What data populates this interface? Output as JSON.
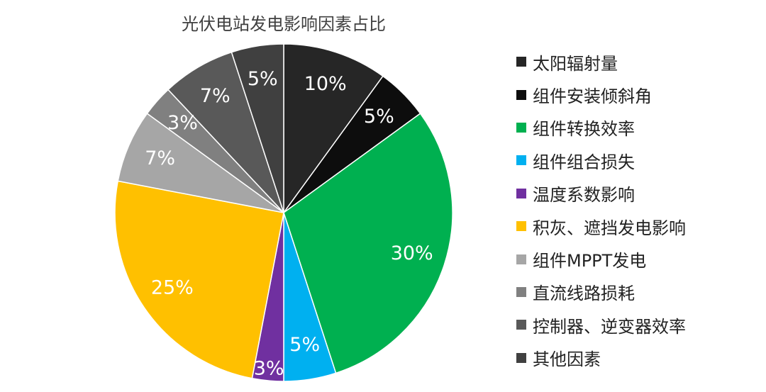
{
  "chart_data": {
    "type": "pie",
    "title": "光伏电站发电影响因素占比",
    "legend_position": "right",
    "slices": [
      {
        "label": "太阳辐射量",
        "value": 10,
        "display": "10%",
        "color": "#262626"
      },
      {
        "label": "组件安装倾斜角",
        "value": 5,
        "display": "5%",
        "color": "#0d0d0d"
      },
      {
        "label": "组件转换效率",
        "value": 30,
        "display": "30%",
        "color": "#00b050"
      },
      {
        "label": "组件组合损失",
        "value": 5,
        "display": "5%",
        "color": "#00b0f0"
      },
      {
        "label": "温度系数影响",
        "value": 3,
        "display": "3%",
        "color": "#7030a0"
      },
      {
        "label": "积灰、遮挡发电影响",
        "value": 25,
        "display": "25%",
        "color": "#ffc000"
      },
      {
        "label": "组件MPPT发电",
        "value": 7,
        "display": "7%",
        "color": "#a6a6a6"
      },
      {
        "label": "直流线路损耗",
        "value": 3,
        "display": "3%",
        "color": "#808080"
      },
      {
        "label": "控制器、逆变器效率",
        "value": 7,
        "display": "7%",
        "color": "#595959"
      },
      {
        "label": "其他因素",
        "value": 5,
        "display": "5%",
        "color": "#404040"
      }
    ]
  }
}
